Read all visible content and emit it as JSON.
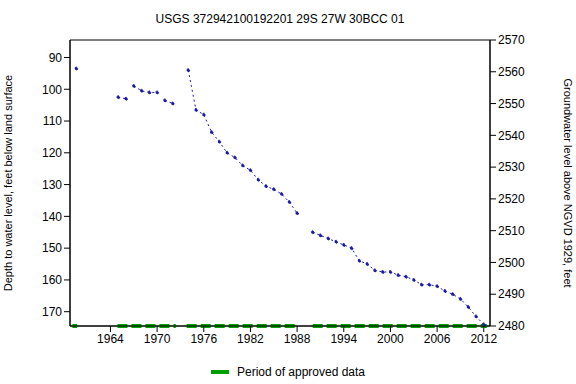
{
  "chart_data": {
    "type": "line",
    "title": "USGS 372942100192201 29S 27W 30BCC 01",
    "y_label": "Depth to water level, feet below land surface",
    "y2_label": "Groundwater level above NGVD 1929, feet",
    "xlim": [
      1958.8,
      2012.8
    ],
    "xticks": [
      1964,
      1970,
      1976,
      1982,
      1988,
      1994,
      2000,
      2006,
      2012
    ],
    "ylim": [
      84.5,
      174.5
    ],
    "yticks": [
      90,
      100,
      110,
      120,
      130,
      140,
      150,
      160,
      170
    ],
    "y2lim": [
      2480,
      2570
    ],
    "y2ticks": [
      2480,
      2490,
      2500,
      2510,
      2520,
      2530,
      2540,
      2550,
      2560,
      2570
    ],
    "grid": false,
    "x": [
      1959.6,
      1962,
      1965,
      1966,
      1966.5,
      1967,
      1968,
      1969,
      1970,
      1970.5,
      1971,
      1972,
      1973,
      1974,
      1975,
      1976,
      1977,
      1978,
      1979,
      1980,
      1981,
      1982,
      1983,
      1984,
      1985,
      1986,
      1987,
      1988,
      1989,
      1990,
      1991,
      1992,
      1993,
      1994,
      1995,
      1996,
      1997,
      1998,
      1999,
      2000,
      2001,
      2002,
      2003,
      2004,
      2005,
      2006,
      2007,
      2008,
      2009,
      2010,
      2011,
      2012
    ],
    "series": [
      {
        "name": "Depth to water level",
        "color": "#1a1aa8",
        "marker": "dot",
        "line_style": "dotted",
        "values": [
          93.5,
          null,
          102.5,
          103,
          null,
          99,
          100.5,
          101,
          101,
          null,
          103.5,
          104.5,
          null,
          94,
          106.5,
          108,
          113.5,
          116.5,
          120,
          121.5,
          124,
          125.5,
          128.5,
          130.5,
          131.5,
          133,
          135.5,
          139,
          null,
          145,
          146,
          147,
          148,
          149,
          150,
          154,
          155,
          157,
          157.5,
          157.5,
          158.5,
          159,
          160,
          161.5,
          161.5,
          162,
          163.5,
          164.5,
          166,
          168.5,
          171.5,
          174
        ]
      }
    ],
    "approved_periods": {
      "name": "Period of approved data",
      "color": "#00a000",
      "line_style": "dashed",
      "ranges": [
        [
          1959.1,
          1959.7
        ],
        [
          1964.9,
          1972.4
        ],
        [
          1973.8,
          1988.1
        ],
        [
          1990,
          2012.4
        ]
      ]
    }
  }
}
